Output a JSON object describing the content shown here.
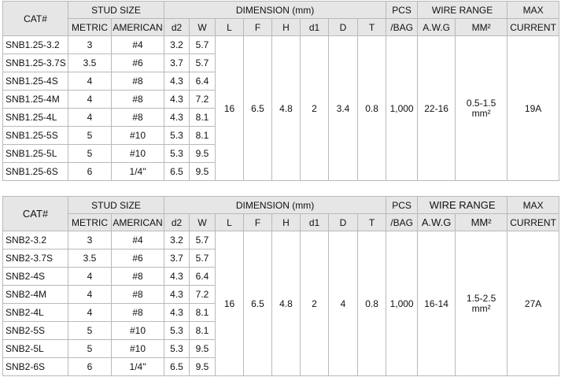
{
  "tables": [
    {
      "headers": {
        "cat": "CAT#",
        "stud_size": "STUD SIZE",
        "metric": "METRIC",
        "american": "AMERICAN",
        "dimension": "DIMENSION (mm)",
        "d2": "d2",
        "w": "W",
        "l": "L",
        "f": "F",
        "h": "H",
        "d1": "d1",
        "d": "D",
        "t": "T",
        "pcs": "PCS",
        "bag": "/BAG",
        "wire_range": "WIRE RANGE",
        "awg": "A.W.G",
        "mm2": "MM²",
        "max": "MAX",
        "current": "CURRENT"
      },
      "rows": [
        {
          "cat": "SNB1.25-3.2",
          "metric": "3",
          "american": "#4",
          "d2": "3.2",
          "w": "5.7"
        },
        {
          "cat": "SNB1.25-3.7S",
          "metric": "3.5",
          "american": "#6",
          "d2": "3.7",
          "w": "5.7"
        },
        {
          "cat": "SNB1.25-4S",
          "metric": "4",
          "american": "#8",
          "d2": "4.3",
          "w": "6.4"
        },
        {
          "cat": "SNB1.25-4M",
          "metric": "4",
          "american": "#8",
          "d2": "4.3",
          "w": "7.2"
        },
        {
          "cat": "SNB1.25-4L",
          "metric": "4",
          "american": "#8",
          "d2": "4.3",
          "w": "8.1"
        },
        {
          "cat": "SNB1.25-5S",
          "metric": "5",
          "american": "#10",
          "d2": "5.3",
          "w": "8.1"
        },
        {
          "cat": "SNB1.25-5L",
          "metric": "5",
          "american": "#10",
          "d2": "5.3",
          "w": "9.5"
        },
        {
          "cat": "SNB1.25-6S",
          "metric": "6",
          "american": "1/4\"",
          "d2": "6.5",
          "w": "9.5"
        }
      ],
      "shared": {
        "l": "16",
        "f": "6.5",
        "h": "4.8",
        "d1": "2",
        "d": "3.4",
        "t": "0.8",
        "pcs": "1,000",
        "awg": "22-16",
        "mm2_line1": "0.5-1.5",
        "mm2_line2": "mm²",
        "current": "19A"
      }
    },
    {
      "headers": {
        "cat": "CAT#",
        "stud_size": "STUD SIZE",
        "metric": "METRIC",
        "american": "AMERICAN",
        "dimension": "DIMENSION (mm)",
        "d2": "d2",
        "w": "W",
        "l": "L",
        "f": "F",
        "h": "H",
        "d1": "d1",
        "d": "D",
        "t": "T",
        "pcs": "PCS",
        "bag": "/BAG",
        "wire_range": "WIRE RANGE",
        "awg": "A.W.G",
        "mm2": "MM²",
        "max": "MAX",
        "current": "CURRENT"
      },
      "rows": [
        {
          "cat": "SNB2-3.2",
          "metric": "3",
          "american": "#4",
          "d2": "3.2",
          "w": "5.7"
        },
        {
          "cat": "SNB2-3.7S",
          "metric": "3.5",
          "american": "#6",
          "d2": "3.7",
          "w": "5.7"
        },
        {
          "cat": "SNB2-4S",
          "metric": "4",
          "american": "#8",
          "d2": "4.3",
          "w": "6.4"
        },
        {
          "cat": "SNB2-4M",
          "metric": "4",
          "american": "#8",
          "d2": "4.3",
          "w": "7.2"
        },
        {
          "cat": "SNB2-4L",
          "metric": "4",
          "american": "#8",
          "d2": "4.3",
          "w": "8.1"
        },
        {
          "cat": "SNB2-5S",
          "metric": "5",
          "american": "#10",
          "d2": "5.3",
          "w": "8.1"
        },
        {
          "cat": "SNB2-5L",
          "metric": "5",
          "american": "#10",
          "d2": "5.3",
          "w": "9.5"
        },
        {
          "cat": "SNB2-6S",
          "metric": "6",
          "american": "1/4\"",
          "d2": "6.5",
          "w": "9.5"
        }
      ],
      "shared": {
        "l": "16",
        "f": "6.5",
        "h": "4.8",
        "d1": "2",
        "d": "4",
        "t": "0.8",
        "pcs": "1,000",
        "awg": "16-14",
        "mm2_line1": "1.5-2.5",
        "mm2_line2": "mm²",
        "current": "27A"
      }
    }
  ],
  "colors": {
    "header_bg": "#e6e6e6",
    "border": "#b9b9b9"
  }
}
